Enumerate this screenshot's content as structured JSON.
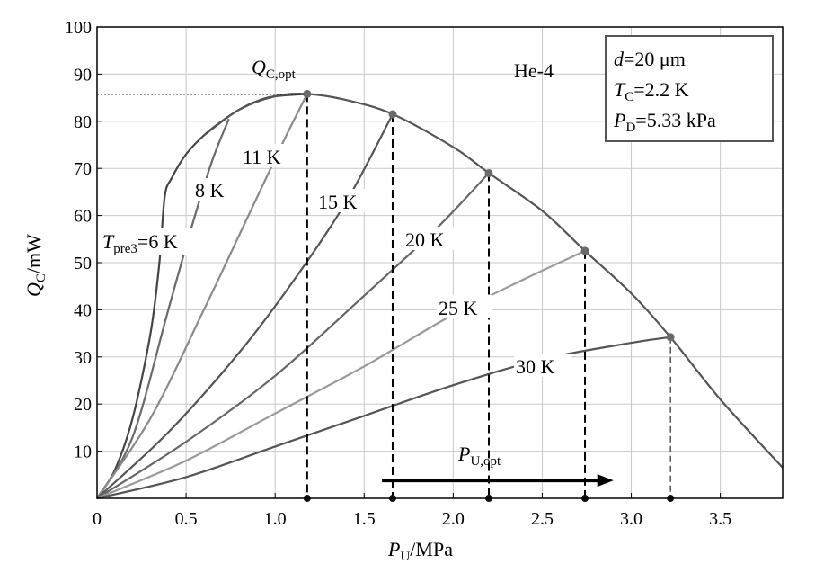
{
  "chart_data": {
    "type": "line",
    "title": "",
    "xlabel": {
      "main": "P",
      "sub": "U",
      "unit": "/MPa"
    },
    "ylabel": {
      "main": "Q",
      "sub": "C",
      "unit": "/mW"
    },
    "xlim": [
      0,
      3.85
    ],
    "ylim": [
      0,
      100
    ],
    "x_ticks": [
      "0",
      "0.5",
      "1.0",
      "1.5",
      "2.0",
      "2.5",
      "3.0",
      "3.5"
    ],
    "y_ticks": [
      "0",
      "10",
      "20",
      "30",
      "40",
      "50",
      "60",
      "70",
      "80",
      "90",
      "100"
    ],
    "grid": true,
    "colors": {
      "envelope": "#555555",
      "6K": "#444444",
      "8K": "#6a6a6a",
      "11K": "#8a8a8a",
      "15K": "#555555",
      "20K": "#666666",
      "25K": "#9a9a9a",
      "30K": "#555555"
    },
    "series": [
      {
        "name": "6 K",
        "label_main": "T",
        "label_sub": "pre3",
        "label_tail": "=6 K",
        "x": [
          0,
          0.1,
          0.2,
          0.3,
          0.35,
          0.38,
          0.42,
          0.5,
          0.6,
          0.7,
          0.8,
          0.9,
          1.0,
          1.18
        ],
        "y": [
          0,
          6,
          17,
          35,
          50,
          64,
          68,
          73,
          77,
          80,
          82.5,
          84.3,
          85.3,
          85.8
        ]
      },
      {
        "name": "8 K",
        "label": "8 K",
        "x": [
          0,
          0.2,
          0.4,
          0.55,
          0.65,
          0.74
        ],
        "y": [
          0,
          13,
          40,
          60,
          72,
          80.5
        ]
      },
      {
        "name": "11 K",
        "label": "11 K",
        "x": [
          0,
          0.3,
          0.6,
          0.85,
          1.05,
          1.18
        ],
        "y": [
          0,
          17,
          40,
          60,
          76,
          85.8
        ]
      },
      {
        "name": "15 K",
        "label": "15 K",
        "x": [
          0,
          0.4,
          0.8,
          1.1,
          1.4,
          1.66
        ],
        "y": [
          0,
          14,
          31,
          46,
          63,
          81.5
        ]
      },
      {
        "name": "20 K",
        "label": "20 K",
        "x": [
          0,
          0.5,
          1.0,
          1.5,
          1.9,
          2.2
        ],
        "y": [
          0,
          12,
          26,
          43,
          57,
          69
        ]
      },
      {
        "name": "25 K",
        "label": "25 K",
        "x": [
          0,
          0.5,
          1.0,
          1.5,
          2.0,
          2.4,
          2.74
        ],
        "y": [
          0,
          8,
          18,
          28,
          39,
          46.5,
          52.5
        ]
      },
      {
        "name": "30 K",
        "label": "30 K",
        "x": [
          0,
          0.5,
          1.0,
          1.5,
          2.0,
          2.5,
          3.0,
          3.22
        ],
        "y": [
          0,
          4.5,
          11,
          17.5,
          24,
          29.5,
          33,
          34.2
        ]
      }
    ],
    "envelope": {
      "x": [
        0.6,
        0.8,
        1.0,
        1.18,
        1.4,
        1.66,
        2.0,
        2.2,
        2.5,
        2.74,
        3.0,
        3.22,
        3.5,
        3.85
      ],
      "y": [
        77,
        82.5,
        85.3,
        85.8,
        84.5,
        81.5,
        74.5,
        69,
        61,
        52.5,
        43.5,
        34.2,
        21,
        6.5
      ]
    },
    "optimum_points": [
      {
        "x": 1.18,
        "y": 85.8
      },
      {
        "x": 1.66,
        "y": 81.5
      },
      {
        "x": 2.2,
        "y": 69
      },
      {
        "x": 2.74,
        "y": 52.5
      },
      {
        "x": 3.22,
        "y": 34.2
      }
    ],
    "annotations": {
      "q_opt": {
        "main": "Q",
        "sub": "C,opt"
      },
      "p_opt": {
        "main": "P",
        "sub": "U,opt"
      },
      "fluid": "He-4",
      "box_d": {
        "main": "d",
        "tail": "=20 μm"
      },
      "box_tc": {
        "main": "T",
        "sub": "C",
        "tail": "=2.2 K"
      },
      "box_pd": {
        "main": "P",
        "sub": "D",
        "tail": "=5.33 kPa"
      }
    },
    "arrow": {
      "x_start": 1.6,
      "x_end": 2.9,
      "y": 3.8
    }
  }
}
